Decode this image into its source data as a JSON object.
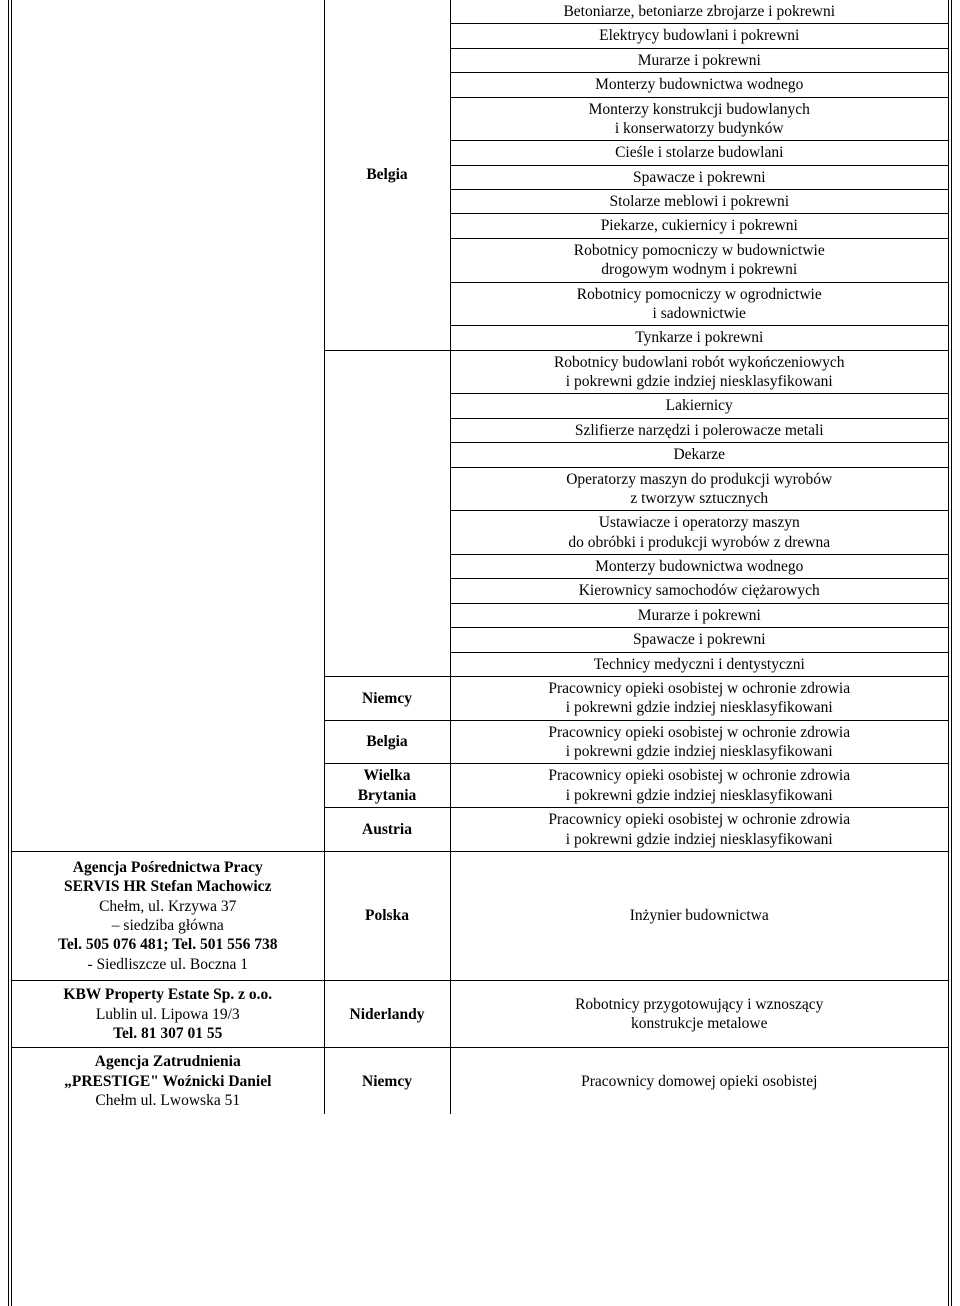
{
  "row_occ_0": "Betoniarze, betoniarze zbrojarze i pokrewni",
  "row_occ_1": "Elektrycy budowlani i pokrewni",
  "row_occ_2": "Murarze i pokrewni",
  "row_occ_3": "Monterzy budownictwa wodnego",
  "row_occ_4": "Monterzy konstrukcji budowlanych\ni konserwatorzy budynków",
  "row_occ_5": "Cieśle i stolarze budowlani",
  "row_occ_6": "Spawacze i pokrewni",
  "row_occ_7": "Stolarze meblowi i pokrewni",
  "row_occ_8": "Piekarze, cukiernicy i pokrewni",
  "row_occ_9": "Robotnicy pomocniczy w budownictwie\ndrogowym wodnym i pokrewni",
  "row_occ_10": "Robotnicy pomocniczy w ogrodnictwie\ni sadownictwie",
  "row_occ_11": "Tynkarze i pokrewni",
  "row_occ_12": "Robotnicy budowlani robót wykończeniowych\ni pokrewni gdzie indziej niesklasyfikowani",
  "row_occ_13": "Lakiernicy",
  "row_occ_14": "Szlifierze narzędzi i polerowacze metali",
  "row_occ_15": "Dekarze",
  "row_occ_16": "Operatorzy maszyn do produkcji wyrobów\nz tworzyw sztucznych",
  "row_occ_17": "Ustawiacze i operatorzy maszyn\ndo obróbki i produkcji wyrobów z drewna",
  "row_occ_18": "Monterzy budownictwa wodnego",
  "row_occ_19": "Kierownicy samochodów ciężarowych",
  "row_occ_20": "Murarze i pokrewni",
  "row_occ_21": "Spawacze i pokrewni",
  "row_occ_22": "Technicy medyczni i dentystyczni",
  "row_occ_23": "Pracownicy opieki osobistej w ochronie zdrowia\ni pokrewni gdzie indziej niesklasyfikowani",
  "row_occ_24": "Pracownicy opieki osobistej w ochronie zdrowia\ni pokrewni gdzie indziej niesklasyfikowani",
  "row_occ_25": "Pracownicy opieki osobistej w ochronie zdrowia\ni pokrewni gdzie indziej niesklasyfikowani",
  "row_occ_26": "Pracownicy opieki osobistej w ochronie zdrowia\ni pokrewni gdzie indziej niesklasyfikowani",
  "row_occ_27": "Inżynier budownictwa",
  "row_occ_28": "Robotnicy przygotowujący i wznoszący\nkonstrukcje metalowe",
  "row_occ_29": "Pracownicy domowej opieki osobistej",
  "country_belgia": "Belgia",
  "country_niemcy": "Niemcy",
  "country_wielka_brytania": "Wielka\nBrytania",
  "country_austria": "Austria",
  "country_polska": "Polska",
  "country_niderlandy": "Niderlandy",
  "agency_servis_title": "Agencja Pośrednictwa Pracy\nSERVIS HR Stefan Machowicz",
  "agency_servis_addr1": "Chełm, ul. Krzywa 37\n– siedziba główna",
  "agency_servis_tel": "Tel. 505 076 481; Tel. 501 556 738",
  "agency_servis_addr2": "- Siedliszcze ul. Boczna 1",
  "agency_kbw_title": "KBW Property Estate Sp. z o.o.",
  "agency_kbw_addr": "Lublin ul. Lipowa 19/3",
  "agency_kbw_tel": "Tel. 81 307 01 55",
  "agency_prestige_title": "Agencja Zatrudnienia\n„PRESTIGE\" Woźnicki Daniel",
  "agency_prestige_addr": "Chełm ul. Lwowska 51",
  "colors": {
    "text": "#000000",
    "border": "#000000",
    "background": "#ffffff"
  },
  "font_family": "Times New Roman",
  "font_size_pt": 12
}
